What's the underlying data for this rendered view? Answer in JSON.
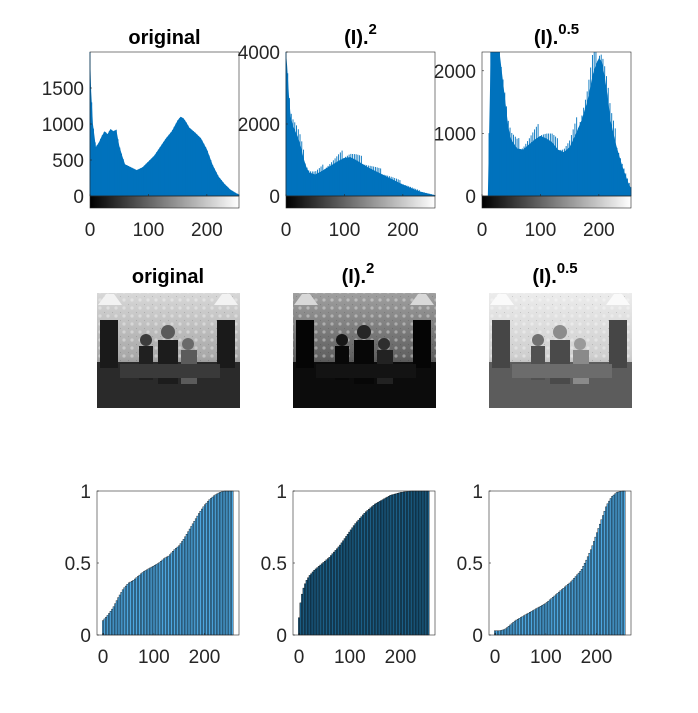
{
  "colors": {
    "hist_fill": "#0072BD",
    "cdf_fill": "#4DA6DF",
    "cdf_fill_dark": "#1B5E86",
    "cdf_edge": "#000000",
    "axis": "#262626",
    "title": "#000000"
  },
  "photo_description_visible": false,
  "chart_data": [
    {
      "type": "bar",
      "title": "original",
      "title_sup": "",
      "xlim": [
        0,
        255
      ],
      "ylim": [
        0,
        2000
      ],
      "xticks": [
        "0",
        "100",
        "200"
      ],
      "yticks": [
        "0",
        "500",
        "1000",
        "1500"
      ],
      "colorbar": true,
      "series": [
        {
          "x": [
            0,
            2,
            5,
            10,
            15,
            20,
            25,
            30,
            35,
            40,
            45,
            50,
            55,
            60,
            70,
            80,
            90,
            100,
            110,
            120,
            130,
            140,
            150,
            155,
            160,
            165,
            170,
            180,
            190,
            200,
            210,
            220,
            230,
            240,
            250,
            255
          ],
          "values": [
            2000,
            1450,
            1000,
            680,
            740,
            830,
            900,
            860,
            930,
            900,
            920,
            700,
            560,
            440,
            400,
            360,
            400,
            480,
            560,
            680,
            800,
            900,
            1050,
            1100,
            1080,
            1020,
            950,
            880,
            800,
            650,
            430,
            270,
            170,
            90,
            40,
            20
          ]
        }
      ]
    },
    {
      "type": "bar",
      "title": "(I).",
      "title_sup": "2",
      "xlim": [
        0,
        255
      ],
      "ylim": [
        0,
        4000
      ],
      "xticks": [
        "0",
        "100",
        "200"
      ],
      "yticks": [
        "0",
        "2000",
        "4000"
      ],
      "colorbar": true,
      "series": [
        {
          "x": [
            0,
            2,
            5,
            8,
            12,
            16,
            20,
            25,
            30,
            35,
            40,
            50,
            60,
            70,
            80,
            90,
            100,
            110,
            120,
            130,
            140,
            150,
            160,
            170,
            180,
            190,
            200,
            210,
            220,
            230,
            240,
            250,
            255
          ],
          "values": [
            4000,
            3600,
            2800,
            2200,
            1950,
            1800,
            1650,
            1400,
            1050,
            800,
            650,
            600,
            680,
            780,
            880,
            980,
            1060,
            1080,
            1000,
            900,
            800,
            720,
            640,
            560,
            480,
            400,
            320,
            250,
            180,
            120,
            80,
            40,
            20
          ]
        }
      ]
    },
    {
      "type": "bar",
      "title": "(I).",
      "title_sup": "0.5",
      "xlim": [
        0,
        255
      ],
      "ylim": [
        0,
        2300
      ],
      "xticks": [
        "0",
        "100",
        "200"
      ],
      "yticks": [
        "0",
        "1000",
        "2000"
      ],
      "colorbar": true,
      "series": [
        {
          "x": [
            0,
            10,
            15,
            20,
            25,
            30,
            35,
            40,
            45,
            50,
            60,
            70,
            80,
            90,
            100,
            110,
            120,
            130,
            140,
            150,
            160,
            170,
            180,
            190,
            195,
            200,
            205,
            210,
            215,
            220,
            230,
            240,
            250,
            255
          ],
          "values": [
            0,
            0,
            2300,
            2300,
            2300,
            2300,
            1900,
            1500,
            1100,
            900,
            760,
            740,
            820,
            900,
            960,
            920,
            860,
            740,
            700,
            780,
            980,
            1200,
            1500,
            1950,
            2100,
            2200,
            2150,
            1900,
            1600,
            1200,
            800,
            480,
            220,
            120
          ]
        }
      ]
    },
    {
      "type": "bar",
      "title": "",
      "xlim": [
        -12,
        268
      ],
      "ylim": [
        0,
        1
      ],
      "xticks": [
        "0",
        "100",
        "200"
      ],
      "yticks": [
        "0",
        "0.5",
        "1"
      ],
      "series": [
        {
          "x": [
            0,
            10,
            20,
            30,
            40,
            50,
            60,
            70,
            80,
            90,
            100,
            110,
            120,
            130,
            140,
            150,
            160,
            170,
            180,
            190,
            200,
            210,
            220,
            230,
            240,
            250,
            256
          ],
          "values": [
            0.1,
            0.14,
            0.19,
            0.26,
            0.32,
            0.36,
            0.38,
            0.41,
            0.44,
            0.46,
            0.48,
            0.5,
            0.53,
            0.55,
            0.59,
            0.62,
            0.67,
            0.73,
            0.79,
            0.85,
            0.9,
            0.94,
            0.97,
            0.99,
            1.0,
            1.0,
            1.0
          ]
        }
      ]
    },
    {
      "type": "bar",
      "title": "",
      "xlim": [
        -12,
        268
      ],
      "ylim": [
        0,
        1
      ],
      "xticks": [
        "0",
        "100",
        "200"
      ],
      "yticks": [
        "0",
        "0.5",
        "1"
      ],
      "series": [
        {
          "x": [
            0,
            2,
            5,
            10,
            15,
            20,
            30,
            40,
            50,
            60,
            70,
            80,
            90,
            100,
            110,
            120,
            130,
            140,
            150,
            160,
            170,
            180,
            190,
            200,
            210,
            220,
            230,
            240,
            250,
            256
          ],
          "values": [
            0.12,
            0.2,
            0.27,
            0.34,
            0.38,
            0.41,
            0.45,
            0.48,
            0.51,
            0.54,
            0.58,
            0.62,
            0.67,
            0.72,
            0.77,
            0.81,
            0.85,
            0.88,
            0.91,
            0.93,
            0.95,
            0.97,
            0.98,
            0.99,
            0.995,
            1.0,
            1.0,
            1.0,
            1.0,
            1.0
          ]
        }
      ]
    },
    {
      "type": "bar",
      "title": "",
      "xlim": [
        -12,
        268
      ],
      "ylim": [
        0,
        1
      ],
      "xticks": [
        "0",
        "100",
        "200"
      ],
      "yticks": [
        "0",
        "0.5",
        "1"
      ],
      "series": [
        {
          "x": [
            0,
            10,
            20,
            30,
            40,
            50,
            60,
            70,
            80,
            90,
            100,
            110,
            120,
            130,
            140,
            150,
            160,
            170,
            180,
            190,
            200,
            210,
            220,
            230,
            240,
            250,
            256
          ],
          "values": [
            0.03,
            0.03,
            0.04,
            0.07,
            0.1,
            0.12,
            0.14,
            0.16,
            0.18,
            0.2,
            0.22,
            0.25,
            0.28,
            0.31,
            0.34,
            0.37,
            0.41,
            0.45,
            0.52,
            0.6,
            0.7,
            0.8,
            0.9,
            0.96,
            0.99,
            1.0,
            1.0
          ]
        }
      ]
    }
  ],
  "image_titles": [
    {
      "title": "original",
      "sup": ""
    },
    {
      "title": "(I).",
      "sup": "2"
    },
    {
      "title": "(I).",
      "sup": "0.5"
    }
  ]
}
